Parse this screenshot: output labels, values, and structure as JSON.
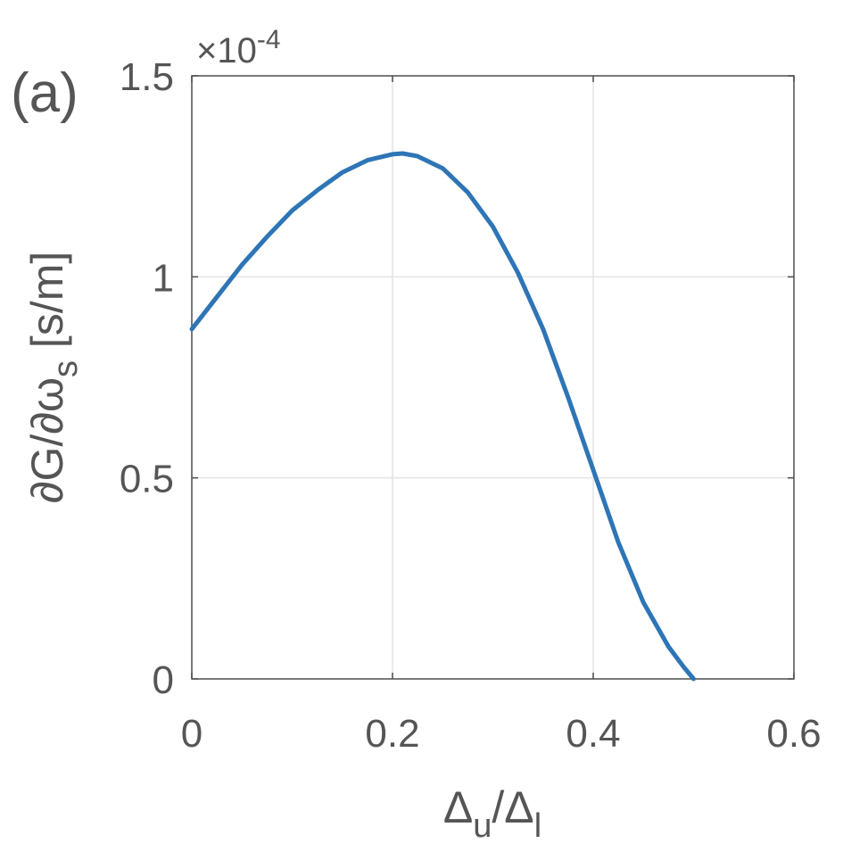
{
  "panel_label": "(a)",
  "chart_data": {
    "type": "line",
    "xlabel_parts": {
      "delta": "Δ",
      "sub_u": "u",
      "slash": "/",
      "sub_l": "l"
    },
    "ylabel_parts": {
      "main": "∂G/∂ω",
      "sub": "s",
      "unit": " [s/m]"
    },
    "y_multiplier": {
      "base": "×10",
      "exp": "-4"
    },
    "xlim": [
      0,
      0.6
    ],
    "ylim": [
      0,
      1.5
    ],
    "x_ticks": [
      0,
      0.2,
      0.4,
      0.6
    ],
    "y_ticks": [
      0,
      0.5,
      1,
      1.5
    ],
    "x_tick_labels": [
      "0",
      "0.2",
      "0.4",
      "0.6"
    ],
    "y_tick_labels": [
      "0",
      "0.5",
      "1",
      "1.5"
    ],
    "grid": true,
    "line_color": "#2e75b6",
    "series": [
      {
        "x": [
          0,
          0.025,
          0.05,
          0.075,
          0.1,
          0.125,
          0.15,
          0.175,
          0.2,
          0.21,
          0.225,
          0.25,
          0.275,
          0.3,
          0.325,
          0.35,
          0.375,
          0.4,
          0.425,
          0.45,
          0.475,
          0.49,
          0.5
        ],
        "y": [
          0.87,
          0.95,
          1.03,
          1.1,
          1.165,
          1.215,
          1.26,
          1.29,
          1.305,
          1.307,
          1.3,
          1.27,
          1.21,
          1.125,
          1.01,
          0.87,
          0.7,
          0.52,
          0.34,
          0.19,
          0.08,
          0.03,
          0
        ]
      }
    ]
  }
}
